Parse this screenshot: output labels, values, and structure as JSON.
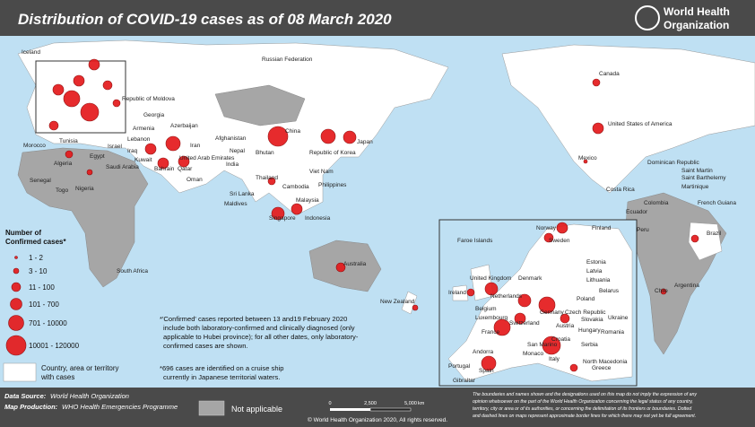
{
  "header": {
    "title": "Distribution of COVID-19 cases as of 08 March 2020",
    "organization": [
      "World Health",
      "Organization"
    ]
  },
  "map": {
    "labels": [
      "Iceland",
      "Russian Federation",
      "Canada",
      "United States of America",
      "China",
      "Japan",
      "Republic of Korea",
      "Mexico",
      "Dominican Republic",
      "Saint Martin",
      "Saint Barthelemy",
      "Martinique",
      "Costa Rica",
      "Colombia",
      "French Guiana",
      "Ecuador",
      "Peru",
      "Brazil",
      "Chile",
      "Argentina",
      "Australia",
      "New Zealand",
      "South Africa",
      "Nigeria",
      "Togo",
      "Senegal",
      "Algeria",
      "Morocco",
      "Tunisia",
      "Egypt",
      "Thailand",
      "Viet Nam",
      "Cambodia",
      "Malaysia",
      "Singapore",
      "Indonesia",
      "Philippines",
      "Sri Lanka",
      "Maldives",
      "Nepal",
      "Bhutan",
      "India",
      "Oman",
      "Qatar",
      "Bahrain",
      "Afghanistan",
      "Georgia",
      "Azerbaijan",
      "Armenia",
      "Iran",
      "Saudi Arabia",
      "Iraq",
      "Lebanon",
      "Israel",
      "Kuwait",
      "United Arab Emirates",
      "Republic of Moldova"
    ]
  },
  "inset": {
    "labels": [
      "Norway",
      "Finland",
      "Sweden",
      "Faroe Islands",
      "Estonia",
      "Latvia",
      "Denmark",
      "Lithuania",
      "United Kingdom",
      "Ireland",
      "Belarus",
      "Netherlands",
      "Poland",
      "Belgium",
      "Luxembourg",
      "Germany",
      "Czech Republic",
      "Ukraine",
      "France",
      "Switzerland",
      "Austria",
      "Slovakia",
      "Hungary",
      "Croatia",
      "San Marino",
      "Monaco",
      "Serbia",
      "Romania",
      "Andorra",
      "Italy",
      "North Macedonia",
      "Greece",
      "Portugal",
      "Spain",
      "Gibraltar"
    ]
  },
  "legend": {
    "title": [
      "Number of",
      "Confirmed cases*"
    ],
    "items": [
      "1 - 2",
      "3 - 10",
      "11 - 100",
      "101 - 700",
      "701 - 10000",
      "10001 - 120000"
    ],
    "country": [
      "Country, area or territory",
      "with cases"
    ],
    "not_applicable": "Not applicable"
  },
  "notes": {
    "confirmed": [
      "*'Confirmed' cases reported between 13 and19 February 2020",
      "include both laboratory-confirmed and clinically diagnosed (only",
      "applicable to Hubei province); for all other dates, only laboratory-",
      "confirmed cases are shown."
    ],
    "cruise": [
      "*696 cases are identified on a cruise ship",
      "currently in Japanese territorial waters."
    ]
  },
  "footer": {
    "source_label": "Data Source:",
    "source": "World Health Organization",
    "production_label": "Map Production:",
    "production": "WHO Health Emergencies Programme",
    "scale": [
      "0",
      "2,500",
      "5,000",
      "km"
    ],
    "copyright": "© World Health Organization 2020, All rights reserved.",
    "disclaimer": [
      "The boundaries and names shown and the designations used on this map do not imply the expression of any",
      "opinion whatsoever on the part of the World Health Organization concerning the legal status of any country,",
      "territory, city or area or of its authorities, or concerning the delimitation of its frontiers or boundaries. Dotted",
      "and dashed lines on maps represent approximate border lines for which there may not yet be full agreement."
    ]
  }
}
